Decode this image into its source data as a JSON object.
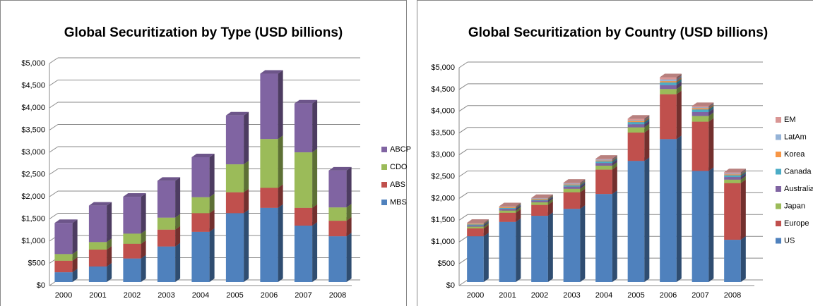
{
  "chart_data": [
    {
      "type": "bar",
      "stacked": true,
      "title": "Global Securitization by Type (USD billions)",
      "categories": [
        "2000",
        "2001",
        "2002",
        "2003",
        "2004",
        "2005",
        "2006",
        "2007",
        "2008"
      ],
      "series": [
        {
          "name": "MBS",
          "color": "#4f81bd",
          "values": [
            220,
            350,
            530,
            800,
            1130,
            1550,
            1670,
            1270,
            1030
          ]
        },
        {
          "name": "ABS",
          "color": "#c0504d",
          "values": [
            260,
            380,
            330,
            380,
            420,
            470,
            450,
            400,
            350
          ]
        },
        {
          "name": "CDO",
          "color": "#9bbb59",
          "values": [
            150,
            170,
            230,
            270,
            360,
            630,
            1100,
            1250,
            300
          ]
        },
        {
          "name": "ABCP",
          "color": "#8064a2",
          "values": [
            700,
            820,
            830,
            830,
            900,
            1100,
            1470,
            1100,
            830
          ]
        }
      ],
      "ylim": [
        0,
        5000
      ],
      "yticks": [
        {
          "value": 0,
          "label": "$0"
        },
        {
          "value": 500,
          "label": "$500"
        },
        {
          "value": 1000,
          "label": "$1,000"
        },
        {
          "value": 1500,
          "label": "$1,500"
        },
        {
          "value": 2000,
          "label": "$2,000"
        },
        {
          "value": 2500,
          "label": "$2,500"
        },
        {
          "value": 3000,
          "label": "$3,000"
        },
        {
          "value": 3500,
          "label": "$3,500"
        },
        {
          "value": 4000,
          "label": "$4,000"
        },
        {
          "value": 4500,
          "label": "$4,500"
        },
        {
          "value": 5000,
          "label": "$5,000"
        }
      ],
      "grid": true,
      "legend": "right"
    },
    {
      "type": "bar",
      "stacked": true,
      "title": "Global Securitization by Country (USD billions)",
      "categories": [
        "2000",
        "2001",
        "2002",
        "2003",
        "2004",
        "2005",
        "2006",
        "2007",
        "2008"
      ],
      "series": [
        {
          "name": "US",
          "color": "#4f81bd",
          "values": [
            1050,
            1380,
            1520,
            1680,
            2020,
            2780,
            3280,
            2550,
            970
          ]
        },
        {
          "name": "Europe",
          "color": "#c0504d",
          "values": [
            180,
            210,
            250,
            380,
            560,
            650,
            1030,
            1130,
            1300
          ]
        },
        {
          "name": "Japan",
          "color": "#9bbb59",
          "values": [
            40,
            50,
            60,
            80,
            90,
            120,
            120,
            130,
            80
          ]
        },
        {
          "name": "Australia",
          "color": "#8064a2",
          "values": [
            30,
            40,
            40,
            50,
            60,
            70,
            90,
            90,
            60
          ]
        },
        {
          "name": "Canada",
          "color": "#4bacc6",
          "values": [
            20,
            20,
            20,
            30,
            40,
            50,
            60,
            60,
            40
          ]
        },
        {
          "name": "Korea",
          "color": "#f79646",
          "values": [
            20,
            20,
            20,
            20,
            20,
            30,
            30,
            30,
            20
          ]
        },
        {
          "name": "LatAm",
          "color": "#95b3d7",
          "values": [
            10,
            10,
            10,
            20,
            20,
            20,
            40,
            20,
            20
          ]
        },
        {
          "name": "EM",
          "color": "#d99694",
          "values": [
            10,
            10,
            10,
            20,
            20,
            30,
            50,
            30,
            30
          ]
        }
      ],
      "ylim": [
        0,
        5000
      ],
      "yticks": [
        {
          "value": 0,
          "label": "$0"
        },
        {
          "value": 500,
          "label": "$500"
        },
        {
          "value": 1000,
          "label": "$1,000"
        },
        {
          "value": 1500,
          "label": "$1,500"
        },
        {
          "value": 2000,
          "label": "$2,000"
        },
        {
          "value": 2500,
          "label": "$2,500"
        },
        {
          "value": 3000,
          "label": "$3,000"
        },
        {
          "value": 3500,
          "label": "$3,500"
        },
        {
          "value": 4000,
          "label": "$4,000"
        },
        {
          "value": 4500,
          "label": "$4,500"
        },
        {
          "value": 5000,
          "label": "$5,000"
        }
      ],
      "grid": true,
      "legend": "right"
    }
  ]
}
